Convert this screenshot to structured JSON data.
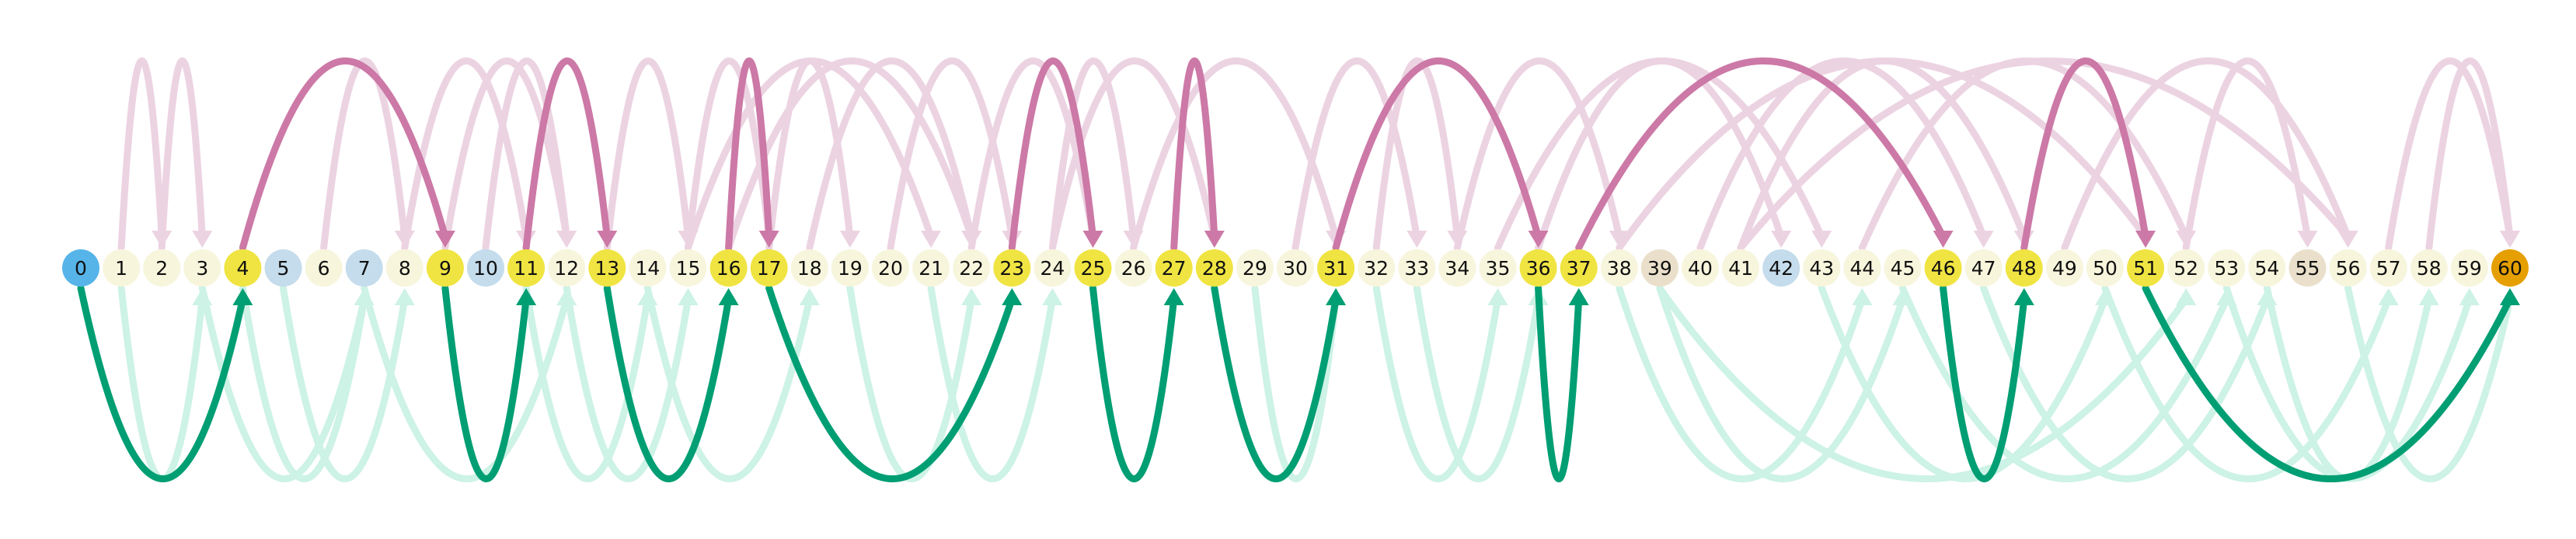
{
  "diagram": {
    "type": "arc-diagram",
    "colors": {
      "background": "#ffffff",
      "node_default": "#f7f5dc",
      "node_path": "#f0e442",
      "node_start": "#56b4e9",
      "node_end": "#e69f00",
      "node_blue": "#c4dcec",
      "node_tan": "#eadfca",
      "arc_up_faint": "#ecd3e2",
      "arc_up_strong": "#cc79a7",
      "arc_down_faint": "#cdf2e6",
      "arc_down_strong": "#009e73"
    },
    "nodes": [
      {
        "id": 0,
        "label": "0",
        "kind": "start"
      },
      {
        "id": 1,
        "label": "1",
        "kind": "default"
      },
      {
        "id": 2,
        "label": "2",
        "kind": "default"
      },
      {
        "id": 3,
        "label": "3",
        "kind": "default"
      },
      {
        "id": 4,
        "label": "4",
        "kind": "path"
      },
      {
        "id": 5,
        "label": "5",
        "kind": "blue"
      },
      {
        "id": 6,
        "label": "6",
        "kind": "default"
      },
      {
        "id": 7,
        "label": "7",
        "kind": "blue"
      },
      {
        "id": 8,
        "label": "8",
        "kind": "default"
      },
      {
        "id": 9,
        "label": "9",
        "kind": "path"
      },
      {
        "id": 10,
        "label": "10",
        "kind": "blue"
      },
      {
        "id": 11,
        "label": "11",
        "kind": "path"
      },
      {
        "id": 12,
        "label": "12",
        "kind": "default"
      },
      {
        "id": 13,
        "label": "13",
        "kind": "path"
      },
      {
        "id": 14,
        "label": "14",
        "kind": "default"
      },
      {
        "id": 15,
        "label": "15",
        "kind": "default"
      },
      {
        "id": 16,
        "label": "16",
        "kind": "path"
      },
      {
        "id": 17,
        "label": "17",
        "kind": "path"
      },
      {
        "id": 18,
        "label": "18",
        "kind": "default"
      },
      {
        "id": 19,
        "label": "19",
        "kind": "default"
      },
      {
        "id": 20,
        "label": "20",
        "kind": "default"
      },
      {
        "id": 21,
        "label": "21",
        "kind": "default"
      },
      {
        "id": 22,
        "label": "22",
        "kind": "default"
      },
      {
        "id": 23,
        "label": "23",
        "kind": "path"
      },
      {
        "id": 24,
        "label": "24",
        "kind": "default"
      },
      {
        "id": 25,
        "label": "25",
        "kind": "path"
      },
      {
        "id": 26,
        "label": "26",
        "kind": "default"
      },
      {
        "id": 27,
        "label": "27",
        "kind": "path"
      },
      {
        "id": 28,
        "label": "28",
        "kind": "path"
      },
      {
        "id": 29,
        "label": "29",
        "kind": "default"
      },
      {
        "id": 30,
        "label": "30",
        "kind": "default"
      },
      {
        "id": 31,
        "label": "31",
        "kind": "path"
      },
      {
        "id": 32,
        "label": "32",
        "kind": "default"
      },
      {
        "id": 33,
        "label": "33",
        "kind": "default"
      },
      {
        "id": 34,
        "label": "34",
        "kind": "default"
      },
      {
        "id": 35,
        "label": "35",
        "kind": "default"
      },
      {
        "id": 36,
        "label": "36",
        "kind": "path"
      },
      {
        "id": 37,
        "label": "37",
        "kind": "path"
      },
      {
        "id": 38,
        "label": "38",
        "kind": "default"
      },
      {
        "id": 39,
        "label": "39",
        "kind": "tan"
      },
      {
        "id": 40,
        "label": "40",
        "kind": "default"
      },
      {
        "id": 41,
        "label": "41",
        "kind": "default"
      },
      {
        "id": 42,
        "label": "42",
        "kind": "blue"
      },
      {
        "id": 43,
        "label": "43",
        "kind": "default"
      },
      {
        "id": 44,
        "label": "44",
        "kind": "default"
      },
      {
        "id": 45,
        "label": "45",
        "kind": "default"
      },
      {
        "id": 46,
        "label": "46",
        "kind": "path"
      },
      {
        "id": 47,
        "label": "47",
        "kind": "default"
      },
      {
        "id": 48,
        "label": "48",
        "kind": "path"
      },
      {
        "id": 49,
        "label": "49",
        "kind": "default"
      },
      {
        "id": 50,
        "label": "50",
        "kind": "default"
      },
      {
        "id": 51,
        "label": "51",
        "kind": "path"
      },
      {
        "id": 52,
        "label": "52",
        "kind": "default"
      },
      {
        "id": 53,
        "label": "53",
        "kind": "default"
      },
      {
        "id": 54,
        "label": "54",
        "kind": "default"
      },
      {
        "id": 55,
        "label": "55",
        "kind": "tan"
      },
      {
        "id": 56,
        "label": "56",
        "kind": "default"
      },
      {
        "id": 57,
        "label": "57",
        "kind": "default"
      },
      {
        "id": 58,
        "label": "58",
        "kind": "default"
      },
      {
        "id": 59,
        "label": "59",
        "kind": "default"
      },
      {
        "id": 60,
        "label": "60",
        "kind": "end"
      }
    ],
    "path_edges": [
      {
        "from": 0,
        "to": 4,
        "side": "below"
      },
      {
        "from": 4,
        "to": 9,
        "side": "above"
      },
      {
        "from": 9,
        "to": 11,
        "side": "below"
      },
      {
        "from": 11,
        "to": 13,
        "side": "above"
      },
      {
        "from": 13,
        "to": 16,
        "side": "below"
      },
      {
        "from": 16,
        "to": 17,
        "side": "above"
      },
      {
        "from": 17,
        "to": 23,
        "side": "below"
      },
      {
        "from": 23,
        "to": 25,
        "side": "above"
      },
      {
        "from": 25,
        "to": 27,
        "side": "below"
      },
      {
        "from": 27,
        "to": 28,
        "side": "above"
      },
      {
        "from": 28,
        "to": 31,
        "side": "below"
      },
      {
        "from": 31,
        "to": 36,
        "side": "above"
      },
      {
        "from": 36,
        "to": 37,
        "side": "below"
      },
      {
        "from": 37,
        "to": 46,
        "side": "above"
      },
      {
        "from": 46,
        "to": 48,
        "side": "below"
      },
      {
        "from": 48,
        "to": 51,
        "side": "above"
      },
      {
        "from": 51,
        "to": 60,
        "side": "below"
      }
    ],
    "other_edges": [
      {
        "from": 1,
        "to": 3,
        "side": "below"
      },
      {
        "from": 2,
        "to": 3,
        "side": "above"
      },
      {
        "from": 1,
        "to": 2,
        "side": "above"
      },
      {
        "from": 3,
        "to": 7,
        "side": "below"
      },
      {
        "from": 6,
        "to": 8,
        "side": "above"
      },
      {
        "from": 7,
        "to": 12,
        "side": "below"
      },
      {
        "from": 4,
        "to": 7,
        "side": "below"
      },
      {
        "from": 5,
        "to": 8,
        "side": "below"
      },
      {
        "from": 8,
        "to": 11,
        "side": "above"
      },
      {
        "from": 10,
        "to": 12,
        "side": "above"
      },
      {
        "from": 9,
        "to": 12,
        "side": "above"
      },
      {
        "from": 12,
        "to": 15,
        "side": "below"
      },
      {
        "from": 13,
        "to": 15,
        "side": "above"
      },
      {
        "from": 11,
        "to": 14,
        "side": "below"
      },
      {
        "from": 14,
        "to": 18,
        "side": "below"
      },
      {
        "from": 15,
        "to": 17,
        "side": "above"
      },
      {
        "from": 15,
        "to": 21,
        "side": "above"
      },
      {
        "from": 17,
        "to": 19,
        "side": "above"
      },
      {
        "from": 18,
        "to": 22,
        "side": "above"
      },
      {
        "from": 16,
        "to": 22,
        "side": "above"
      },
      {
        "from": 19,
        "to": 22,
        "side": "below"
      },
      {
        "from": 20,
        "to": 23,
        "side": "above"
      },
      {
        "from": 21,
        "to": 24,
        "side": "below"
      },
      {
        "from": 22,
        "to": 25,
        "side": "above"
      },
      {
        "from": 24,
        "to": 26,
        "side": "above"
      },
      {
        "from": 24,
        "to": 28,
        "side": "above"
      },
      {
        "from": 26,
        "to": 31,
        "side": "above"
      },
      {
        "from": 29,
        "to": 31,
        "side": "below"
      },
      {
        "from": 30,
        "to": 33,
        "side": "above"
      },
      {
        "from": 32,
        "to": 34,
        "side": "above"
      },
      {
        "from": 32,
        "to": 35,
        "side": "below"
      },
      {
        "from": 33,
        "to": 36,
        "side": "below"
      },
      {
        "from": 34,
        "to": 38,
        "side": "above"
      },
      {
        "from": 35,
        "to": 43,
        "side": "above"
      },
      {
        "from": 36,
        "to": 42,
        "side": "above"
      },
      {
        "from": 38,
        "to": 44,
        "side": "below"
      },
      {
        "from": 39,
        "to": 45,
        "side": "below"
      },
      {
        "from": 40,
        "to": 47,
        "side": "above"
      },
      {
        "from": 41,
        "to": 48,
        "side": "above"
      },
      {
        "from": 38,
        "to": 51,
        "side": "above"
      },
      {
        "from": 43,
        "to": 50,
        "side": "below"
      },
      {
        "from": 44,
        "to": 52,
        "side": "above"
      },
      {
        "from": 45,
        "to": 53,
        "side": "below"
      },
      {
        "from": 47,
        "to": 54,
        "side": "below"
      },
      {
        "from": 49,
        "to": 56,
        "side": "above"
      },
      {
        "from": 50,
        "to": 57,
        "side": "below"
      },
      {
        "from": 52,
        "to": 55,
        "side": "above"
      },
      {
        "from": 53,
        "to": 59,
        "side": "below"
      },
      {
        "from": 54,
        "to": 58,
        "side": "below"
      },
      {
        "from": 56,
        "to": 60,
        "side": "below"
      },
      {
        "from": 57,
        "to": 60,
        "side": "above"
      },
      {
        "from": 58,
        "to": 60,
        "side": "above"
      },
      {
        "from": 41,
        "to": 56,
        "side": "above"
      },
      {
        "from": 39,
        "to": 52,
        "side": "below"
      }
    ]
  }
}
